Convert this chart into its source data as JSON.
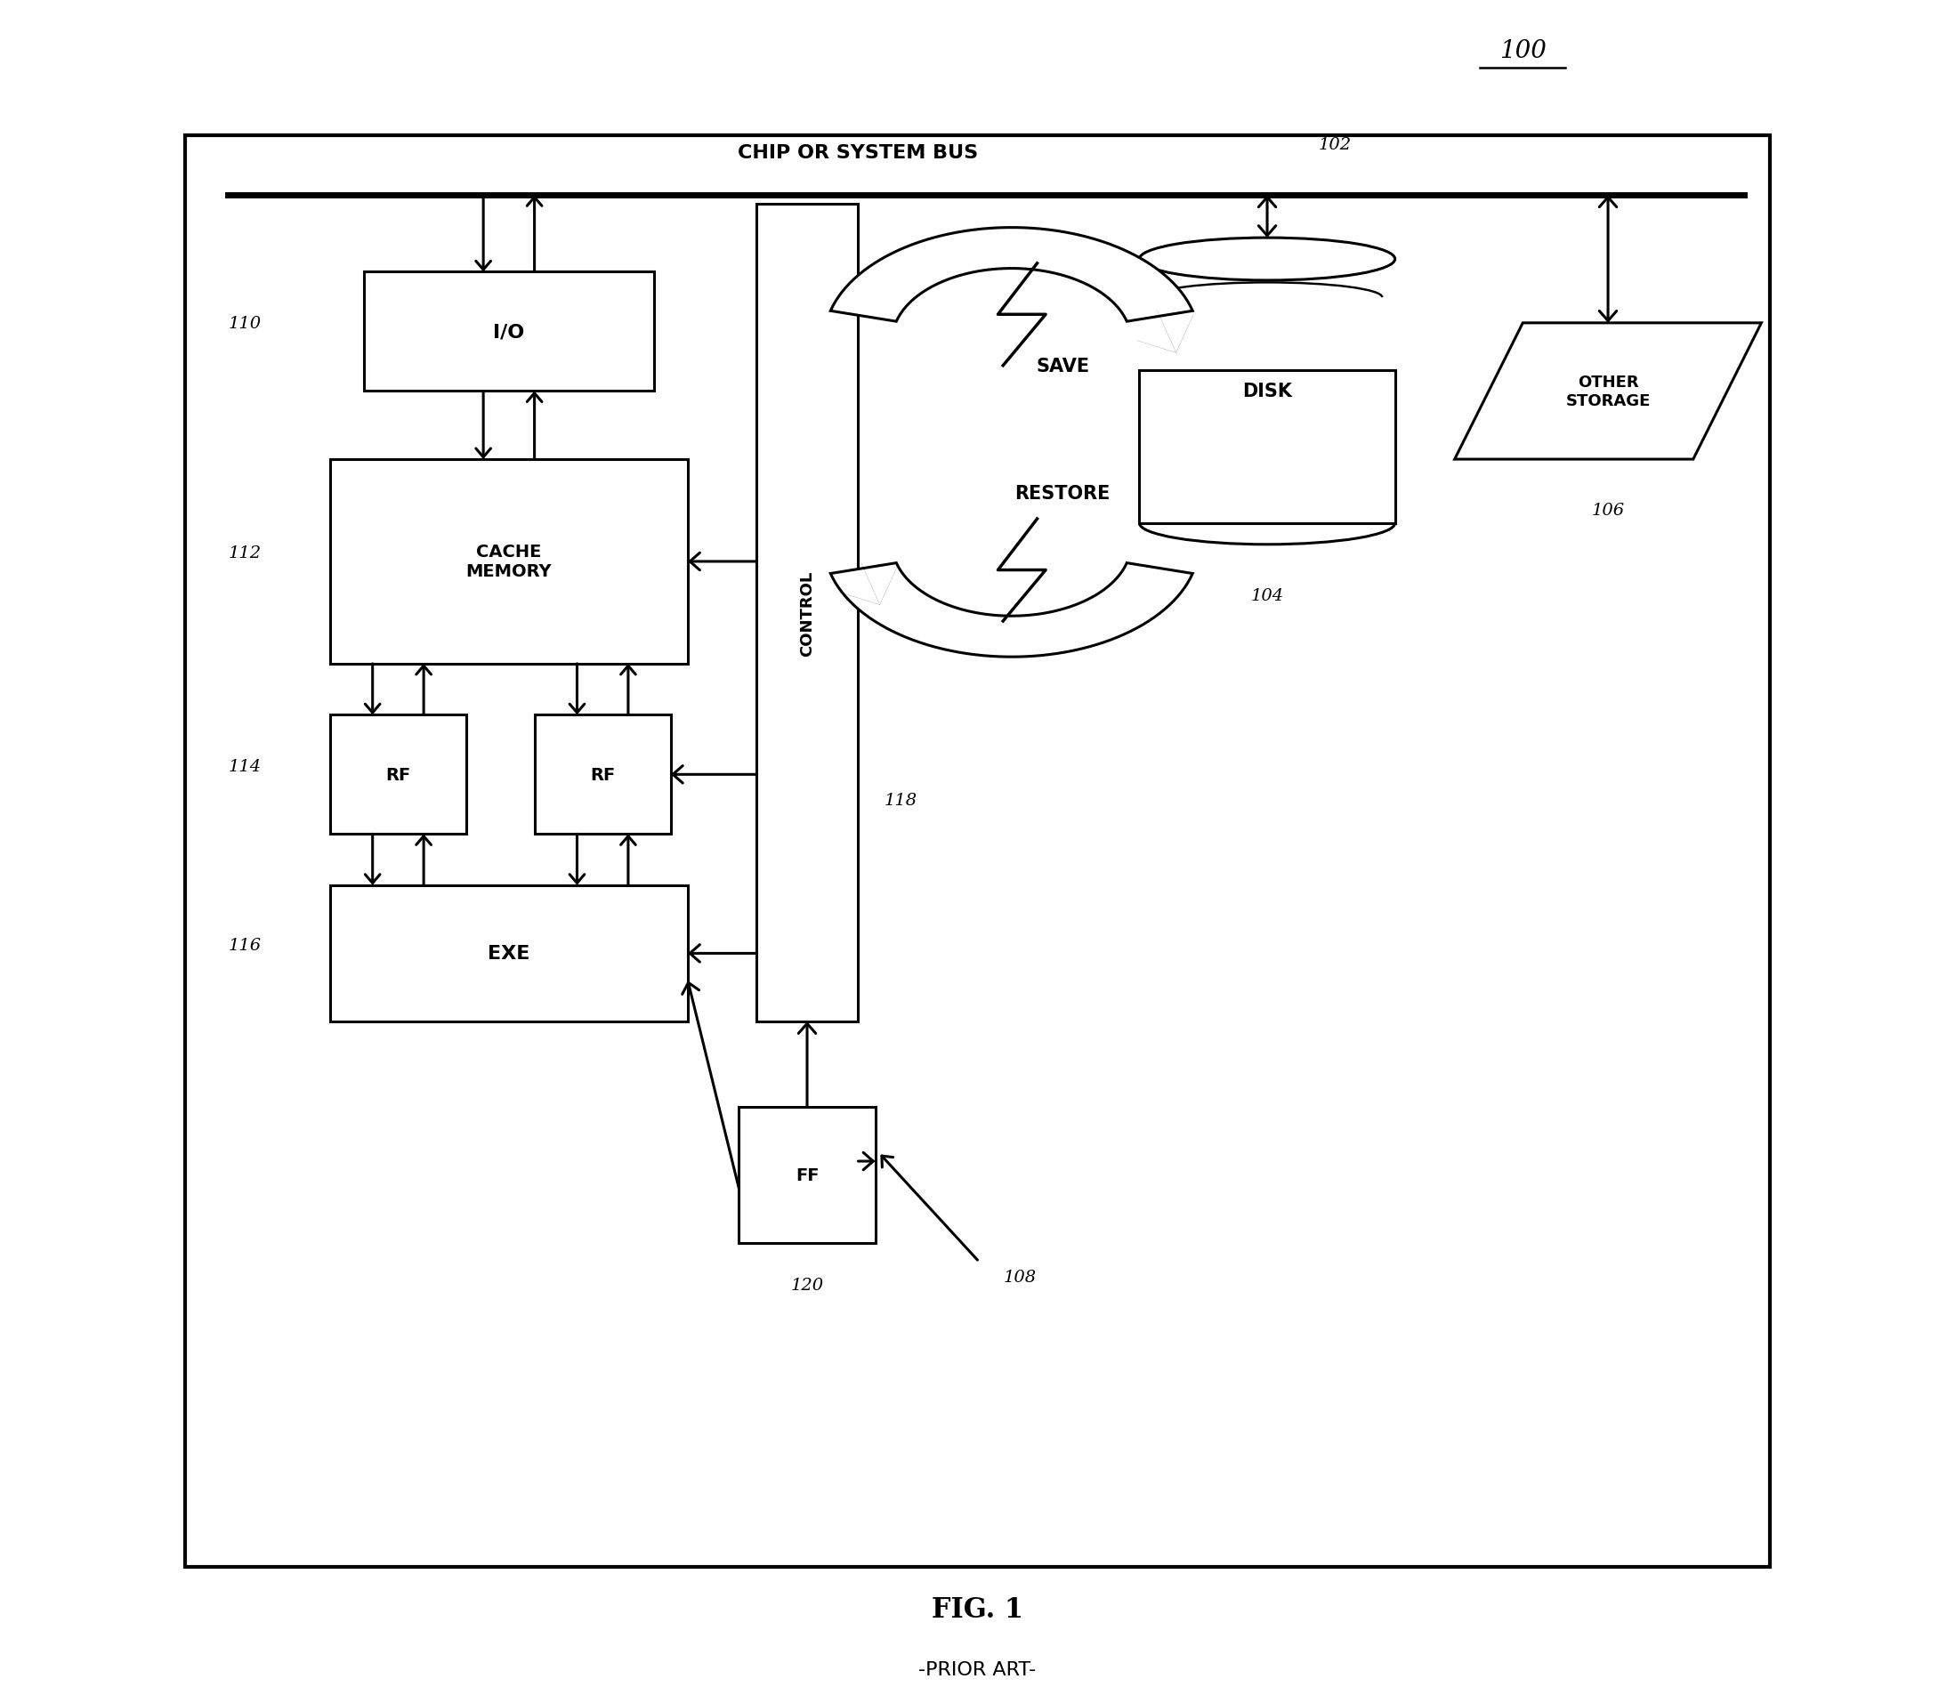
{
  "fig_label": "100",
  "fig_title": "FIG. 1",
  "fig_subtitle": "-PRIOR ART-",
  "bus_label": "CHIP OR SYSTEM BUS",
  "bus_ref": "102",
  "io_label": "I/O",
  "io_ref": "110",
  "cache_label": "CACHE\nMEMORY",
  "cache_ref": "112",
  "rf_ref": "114",
  "exe_label": "EXE",
  "exe_ref": "116",
  "control_label": "CONTROL",
  "control_ref": "118",
  "ff_label": "FF",
  "ff_ref": "120",
  "disk_label": "DISK",
  "disk_ref": "104",
  "storage_label": "OTHER\nSTORAGE",
  "storage_ref": "106",
  "save_label": "SAVE",
  "restore_label": "RESTORE",
  "arrow_ref": "108",
  "bg": "#ffffff"
}
